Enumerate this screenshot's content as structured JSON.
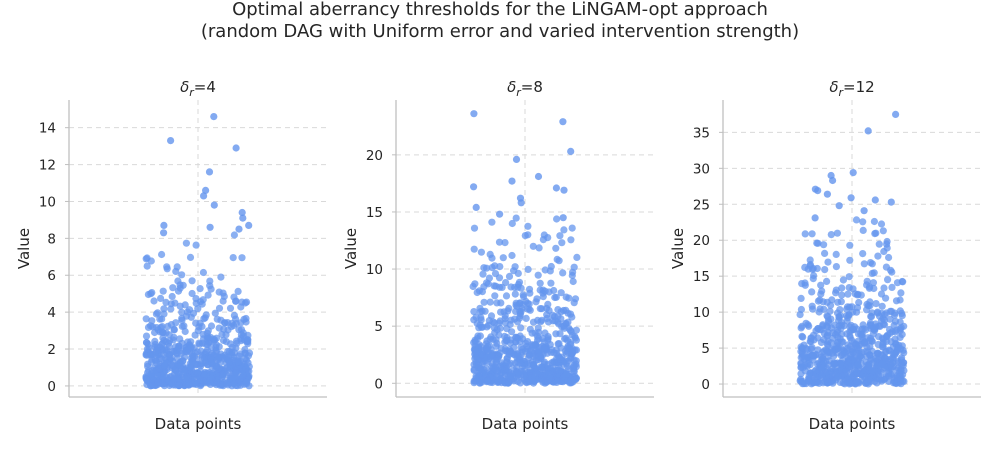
{
  "figure": {
    "title_line1": "Optimal aberrancy thresholds for the LiNGAM-opt approach",
    "title_line2": "(random DAG with Uniform error and varied intervention strength)"
  },
  "colors": {
    "points": "#6495ED",
    "grid": "#d9d9d9",
    "spine": "#bfbfbf",
    "text": "#262626"
  },
  "chart_data": [
    {
      "type": "scatter",
      "title_symbol": "δ",
      "title_subscript": "r",
      "title_value": "=4",
      "xlabel": "Data points",
      "ylabel": "Value",
      "ylim": [
        -0.6,
        15.5
      ],
      "yticks": [
        0,
        2,
        4,
        6,
        8,
        10,
        12,
        14
      ],
      "grid": true,
      "n_points": 700,
      "seed": 11,
      "distribution": "exponential",
      "mean": 1.7,
      "outliers": [
        14.6,
        13.3,
        12.9,
        11.6,
        10.6,
        10.3,
        9.8,
        9.4,
        9.1,
        8.7,
        8.7,
        8.6,
        8.5,
        8.3
      ]
    },
    {
      "type": "scatter",
      "title_symbol": "δ",
      "title_subscript": "r",
      "title_value": "=8",
      "xlabel": "Data points",
      "ylabel": "Value",
      "ylim": [
        -1.2,
        24.8
      ],
      "yticks": [
        0,
        5,
        10,
        15,
        20
      ],
      "grid": true,
      "n_points": 700,
      "seed": 23,
      "distribution": "exponential",
      "mean": 3.6,
      "outliers": [
        23.6,
        22.9,
        20.3,
        19.6,
        18.1,
        17.7,
        17.1,
        17.2,
        16.9,
        16.2,
        15.8,
        15.4,
        14.8,
        14.5
      ]
    },
    {
      "type": "scatter",
      "title_symbol": "δ",
      "title_subscript": "r",
      "title_value": "=12",
      "xlabel": "Data points",
      "ylabel": "Value",
      "ylim": [
        -1.8,
        39.5
      ],
      "yticks": [
        0,
        5,
        10,
        15,
        20,
        25,
        30,
        35
      ],
      "grid": true,
      "n_points": 700,
      "seed": 37,
      "distribution": "exponential",
      "mean": 6.0,
      "outliers": [
        37.5,
        35.2,
        29.4,
        29.0,
        28.3,
        27.1,
        26.9,
        26.4,
        25.9,
        25.6,
        25.3,
        24.8,
        24.1,
        23.1
      ]
    }
  ]
}
